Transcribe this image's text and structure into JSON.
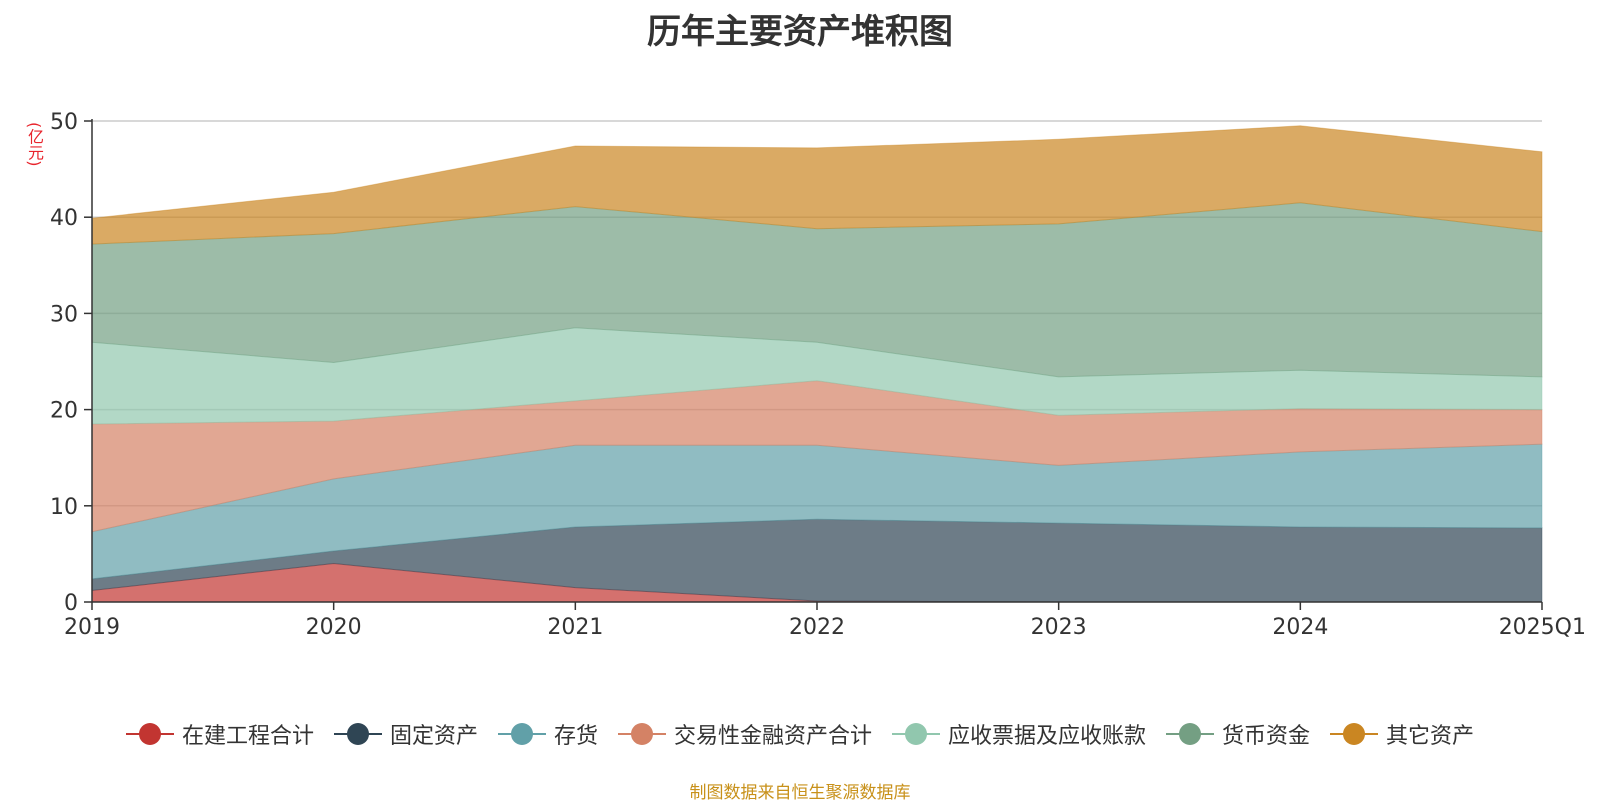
{
  "title": "历年主要资产堆积图",
  "unit_label": "(亿元)",
  "source_note": "制图数据来自恒生聚源数据库",
  "chart_data": {
    "type": "area",
    "stacked": true,
    "categories": [
      "2019",
      "2020",
      "2021",
      "2022",
      "2023",
      "2024",
      "2025Q1"
    ],
    "ylim": [
      0,
      50
    ],
    "yticks": [
      0,
      10,
      20,
      30,
      40,
      50
    ],
    "grid": true,
    "legend_position": "bottom",
    "series": [
      {
        "name": "在建工程合计",
        "color": "#c23531",
        "values": [
          1.2,
          4.0,
          1.5,
          0.1,
          0.0,
          0.0,
          0.0
        ]
      },
      {
        "name": "固定资产",
        "color": "#2f4554",
        "values": [
          1.2,
          1.3,
          6.3,
          8.5,
          8.2,
          7.8,
          7.7
        ]
      },
      {
        "name": "存货",
        "color": "#61a0a8",
        "values": [
          4.9,
          7.5,
          8.5,
          7.7,
          6.0,
          7.8,
          8.7
        ]
      },
      {
        "name": "交易性金融资产合计",
        "color": "#d48265",
        "values": [
          11.2,
          6.0,
          4.6,
          6.7,
          5.2,
          4.5,
          3.6
        ]
      },
      {
        "name": "应收票据及应收账款",
        "color": "#91c7ae",
        "values": [
          8.5,
          6.1,
          7.6,
          4.0,
          4.0,
          4.0,
          3.4
        ]
      },
      {
        "name": "货币资金",
        "color": "#749f83",
        "values": [
          10.2,
          13.4,
          12.6,
          11.8,
          15.9,
          17.4,
          15.1
        ]
      },
      {
        "name": "其它资产",
        "color": "#ca8622",
        "values": [
          2.7,
          4.3,
          6.3,
          8.4,
          8.8,
          8.0,
          8.3
        ]
      }
    ]
  }
}
